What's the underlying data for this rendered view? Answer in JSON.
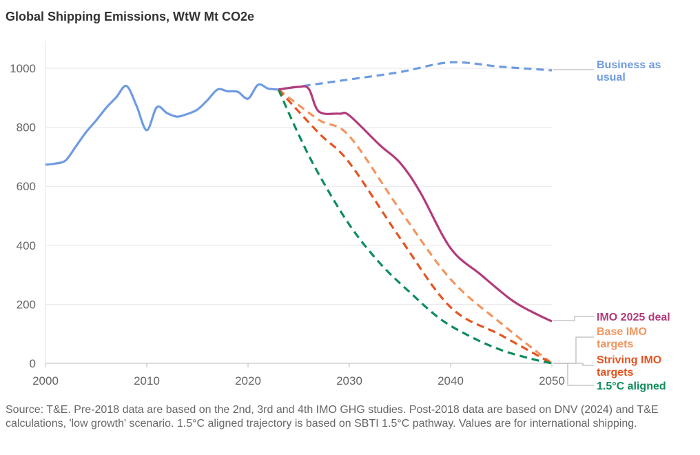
{
  "title": "Global Shipping Emissions, WtW Mt CO2e",
  "source": "Source: T&E. Pre-2018 data are based on the 2nd, 3rd and 4th IMO GHG studies. Post-2018 data are based on DNV (2024) and T&E calculations, 'low growth' scenario. 1.5°C aligned trajectory is based on SBTI 1.5°C pathway. Values are for international shipping.",
  "chart_data": {
    "type": "line",
    "title": "Global Shipping Emissions, WtW Mt CO2e",
    "xlabel": "",
    "ylabel": "",
    "xlim": [
      2000,
      2050
    ],
    "ylim": [
      0,
      1100
    ],
    "x_ticks": [
      "2000",
      "2010",
      "2020",
      "2030",
      "2040",
      "2050"
    ],
    "y_ticks": [
      "0",
      "200",
      "400",
      "600",
      "800",
      "1000"
    ],
    "grid": "horizontal",
    "legend": "direct labels at right end of lines",
    "series": [
      {
        "name": "Historical",
        "color": "#6f9be0",
        "style": "solid",
        "points": [
          [
            2000,
            673
          ],
          [
            2001,
            677
          ],
          [
            2002,
            688
          ],
          [
            2003,
            735
          ],
          [
            2004,
            783
          ],
          [
            2005,
            823
          ],
          [
            2006,
            866
          ],
          [
            2007,
            902
          ],
          [
            2008,
            940
          ],
          [
            2009,
            872
          ],
          [
            2010,
            790
          ],
          [
            2011,
            868
          ],
          [
            2012,
            848
          ],
          [
            2013,
            836
          ],
          [
            2014,
            845
          ],
          [
            2015,
            860
          ],
          [
            2016,
            892
          ],
          [
            2017,
            928
          ],
          [
            2018,
            922
          ],
          [
            2019,
            920
          ],
          [
            2020,
            897
          ],
          [
            2021,
            944
          ],
          [
            2022,
            931
          ],
          [
            2023,
            928
          ]
        ]
      },
      {
        "name": "Business as usual",
        "color": "#6f9be0",
        "style": "dashed",
        "points": [
          [
            2023,
            928
          ],
          [
            2030,
            962
          ],
          [
            2035,
            987
          ],
          [
            2040,
            1020
          ],
          [
            2045,
            1005
          ],
          [
            2050,
            993
          ]
        ]
      },
      {
        "name": "IMO 2025 deal",
        "color": "#b23b7b",
        "style": "solid",
        "points": [
          [
            2023,
            928
          ],
          [
            2025,
            937
          ],
          [
            2026,
            930
          ],
          [
            2027,
            853
          ],
          [
            2029,
            846
          ],
          [
            2030,
            840
          ],
          [
            2033,
            740
          ],
          [
            2035,
            680
          ],
          [
            2037,
            580
          ],
          [
            2040,
            390
          ],
          [
            2043,
            300
          ],
          [
            2046,
            215
          ],
          [
            2048,
            175
          ],
          [
            2050,
            142
          ]
        ]
      },
      {
        "name": "Base IMO targets",
        "color": "#f2955f",
        "style": "dashed",
        "points": [
          [
            2023,
            928
          ],
          [
            2027,
            825
          ],
          [
            2030,
            770
          ],
          [
            2035,
            520
          ],
          [
            2040,
            285
          ],
          [
            2045,
            135
          ],
          [
            2050,
            0
          ]
        ]
      },
      {
        "name": "Striving IMO targets",
        "color": "#e5531f",
        "style": "dashed",
        "points": [
          [
            2023,
            928
          ],
          [
            2027,
            780
          ],
          [
            2030,
            680
          ],
          [
            2035,
            425
          ],
          [
            2040,
            190
          ],
          [
            2045,
            95
          ],
          [
            2050,
            0
          ]
        ]
      },
      {
        "name": "1.5°C aligned",
        "color": "#0e8c5a",
        "style": "dashed",
        "points": [
          [
            2023,
            928
          ],
          [
            2025,
            775
          ],
          [
            2027,
            640
          ],
          [
            2030,
            470
          ],
          [
            2033,
            340
          ],
          [
            2036,
            240
          ],
          [
            2039,
            150
          ],
          [
            2042,
            90
          ],
          [
            2045,
            45
          ],
          [
            2048,
            15
          ],
          [
            2050,
            0
          ]
        ]
      }
    ],
    "annotations": [
      {
        "series": "Business as usual",
        "lines": [
          "Business as",
          "usual"
        ]
      },
      {
        "series": "IMO 2025 deal",
        "lines": [
          "IMO 2025 deal"
        ]
      },
      {
        "series": "Base IMO targets",
        "lines": [
          "Base IMO",
          "targets"
        ]
      },
      {
        "series": "Striving IMO targets",
        "lines": [
          "Striving IMO",
          "targets"
        ]
      },
      {
        "series": "1.5°C aligned",
        "lines": [
          "1.5°C aligned"
        ]
      }
    ]
  }
}
